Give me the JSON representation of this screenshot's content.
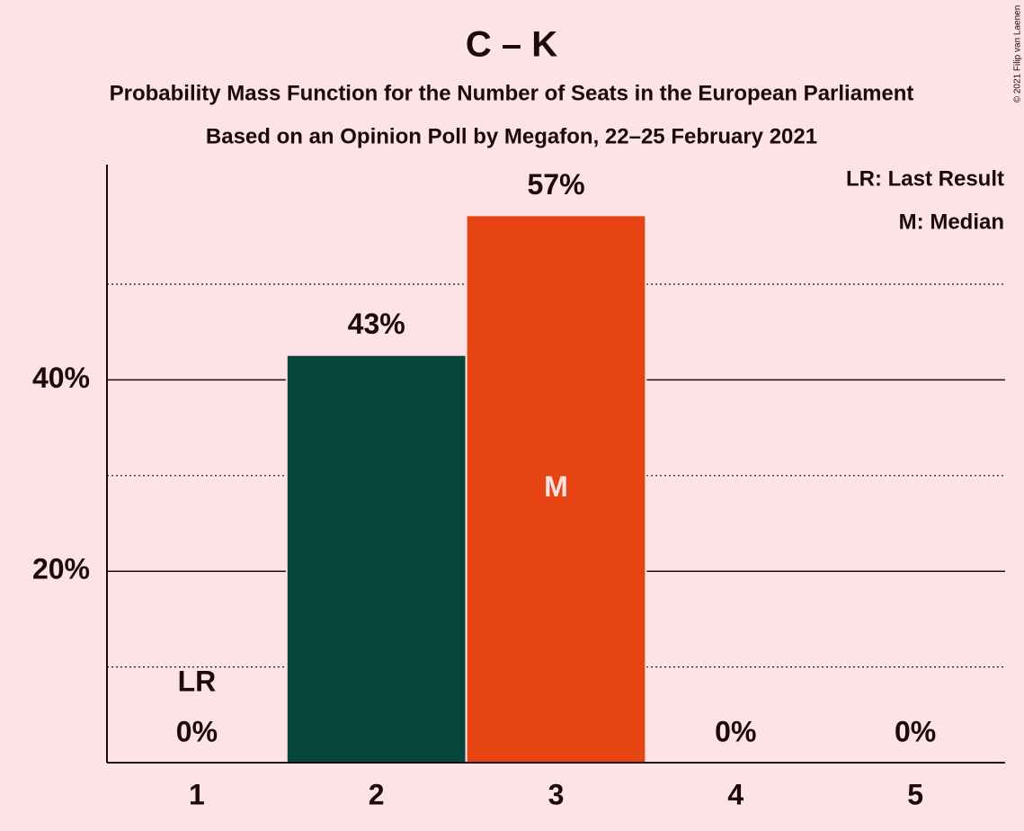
{
  "chart_data": {
    "type": "bar",
    "title": "C – K",
    "subtitles": [
      "Probability Mass Function for the Number of Seats in the European Parliament",
      "Based on an Opinion Poll by Megafon, 22–25 February 2021"
    ],
    "categories": [
      "1",
      "2",
      "3",
      "4",
      "5"
    ],
    "values": [
      0,
      42.6,
      57.2,
      0,
      0
    ],
    "value_labels": [
      "0%",
      "43%",
      "57%",
      "0%",
      "0%"
    ],
    "colors": [
      "#06463a",
      "#06463a",
      "#e64412",
      "#06463a",
      "#06463a"
    ],
    "ylim": [
      0,
      62.5
    ],
    "yticks": [
      {
        "value": 20,
        "label": "20%"
      },
      {
        "value": 40,
        "label": "40%"
      }
    ],
    "minor_yticks": [
      10,
      30,
      50
    ],
    "grid": true,
    "last_result": {
      "label": "LR",
      "category": "1"
    },
    "median": {
      "label": "M",
      "category": "3"
    },
    "legend": [
      "LR: Last Result",
      "M: Median"
    ],
    "credit": "© 2021 Filip van Laenen"
  }
}
